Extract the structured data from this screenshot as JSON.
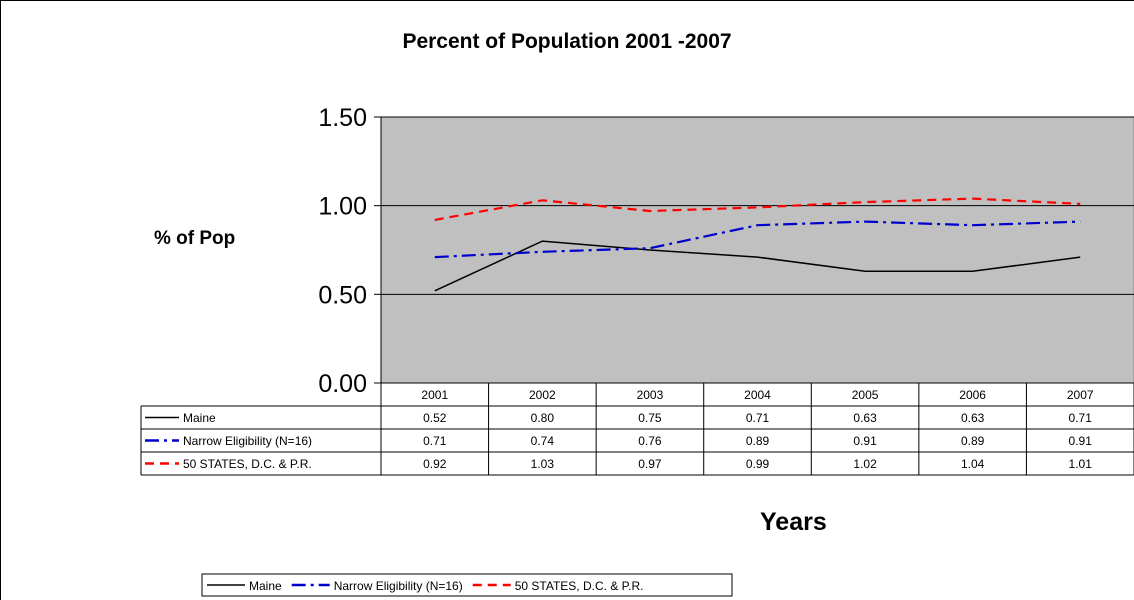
{
  "chart_data": {
    "type": "line",
    "title": "Percent of Population 2001 -2007",
    "xlabel": "Years",
    "ylabel": "% of Pop",
    "categories": [
      "2001",
      "2002",
      "2003",
      "2004",
      "2005",
      "2006",
      "2007"
    ],
    "ylim": [
      0,
      1.5
    ],
    "yticks": [
      "0.00",
      "0.50",
      "1.00",
      "1.50"
    ],
    "grid": true,
    "plot_background": "#C0C0C0",
    "legend_placement": "bottom",
    "data_table": true,
    "series": [
      {
        "name": "Maine",
        "values": [
          0.52,
          0.8,
          0.75,
          0.71,
          0.63,
          0.63,
          0.71
        ],
        "labels": [
          "0.52",
          "0.80",
          "0.75",
          "0.71",
          "0.63",
          "0.63",
          "0.71"
        ],
        "color": "#000000",
        "style": "solid"
      },
      {
        "name": "Narrow Eligibility (N=16)",
        "values": [
          0.71,
          0.74,
          0.76,
          0.89,
          0.91,
          0.89,
          0.91
        ],
        "labels": [
          "0.71",
          "0.74",
          "0.76",
          "0.89",
          "0.91",
          "0.89",
          "0.91"
        ],
        "color": "#0000CC",
        "style": "dashdot"
      },
      {
        "name": "50 STATES, D.C. & P.R.",
        "values": [
          0.92,
          1.03,
          0.97,
          0.99,
          1.02,
          1.04,
          1.01
        ],
        "labels": [
          "0.92",
          "1.03",
          "0.97",
          "0.99",
          "1.02",
          "1.04",
          "1.01"
        ],
        "color": "#FF0000",
        "style": "dashed"
      }
    ]
  }
}
